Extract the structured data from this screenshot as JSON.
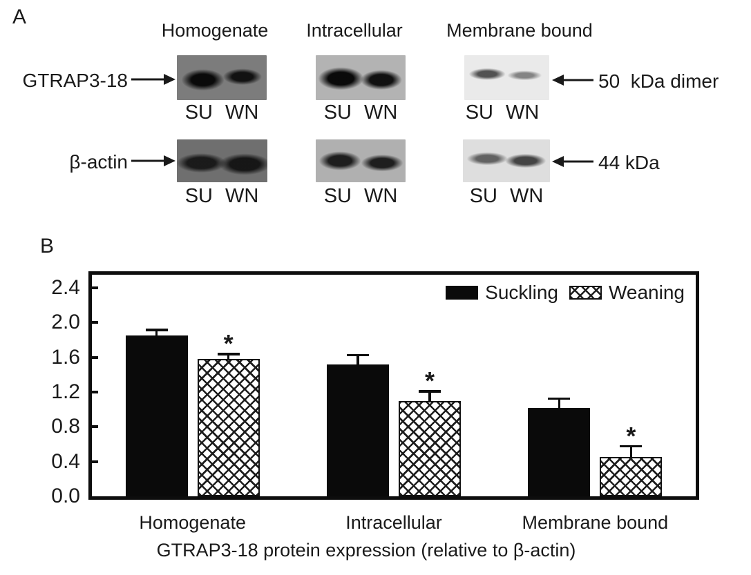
{
  "panel_a": {
    "label": "A",
    "column_headers": [
      "Homogenate",
      "Intracellular",
      "Membrane bound"
    ],
    "rows": [
      {
        "protein": "GTRAP3-18",
        "size_label": "50  kDa dimer"
      },
      {
        "protein": "β-actin",
        "size_label": "44 kDa"
      }
    ],
    "lane_labels": [
      "SU",
      "WN"
    ]
  },
  "panel_b": {
    "label": "B",
    "significance_marker": "*"
  },
  "colors": {
    "ink": "#0d0d0d",
    "bar_solid": "#0a0a0a",
    "background": "#ffffff"
  },
  "chart_data": {
    "type": "bar",
    "categories": [
      "Homogenate",
      "Intracellular",
      "Membrane bound"
    ],
    "series": [
      {
        "name": "Suckling",
        "pattern": "solid-black",
        "values": [
          1.85,
          1.52,
          1.02
        ],
        "errors": [
          0.08,
          0.12,
          0.12
        ],
        "significant": [
          false,
          false,
          false
        ]
      },
      {
        "name": "Weaning",
        "pattern": "crosshatch",
        "values": [
          1.58,
          1.1,
          0.45
        ],
        "errors": [
          0.07,
          0.12,
          0.14
        ],
        "significant": [
          true,
          true,
          true
        ]
      }
    ],
    "title": "",
    "xlabel": "GTRAP3-18 protein expression (relative to β-actin)",
    "ylabel": "",
    "ylim": [
      0,
      2.55
    ],
    "yticks": [
      0.0,
      0.4,
      0.8,
      1.2,
      1.6,
      2.0,
      2.4
    ],
    "grid": false,
    "legend_position": "top-right",
    "error_bars": "upper",
    "significance_marker": "*"
  }
}
